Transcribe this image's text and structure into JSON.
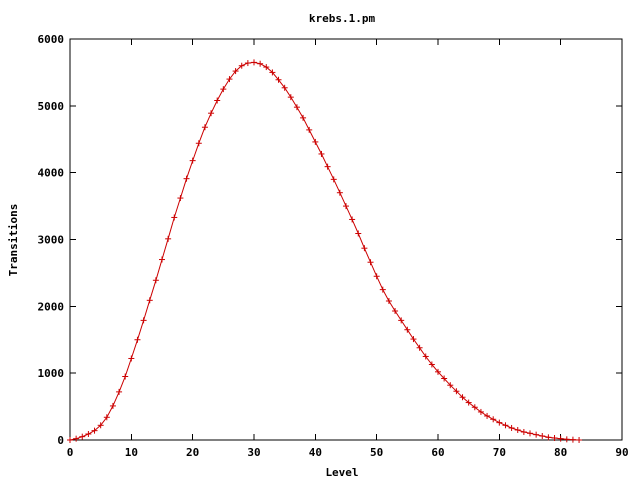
{
  "chart_data": {
    "type": "line",
    "title": "krebs.1.pm",
    "xlabel": "Level",
    "ylabel": "Transitions",
    "xlim": [
      0,
      90
    ],
    "ylim": [
      0,
      6000
    ],
    "xticks": [
      0,
      10,
      20,
      30,
      40,
      50,
      60,
      70,
      80,
      90
    ],
    "yticks": [
      0,
      1000,
      2000,
      3000,
      4000,
      5000,
      6000
    ],
    "grid": false,
    "legend": "none",
    "marker": "plus",
    "colors": {
      "series": "#cc0000",
      "axes": "#000000"
    },
    "series": [
      {
        "x": [
          0,
          1,
          2,
          3,
          4,
          5,
          6,
          7,
          8,
          9,
          10,
          11,
          12,
          13,
          14,
          15,
          16,
          17,
          18,
          19,
          20,
          21,
          22,
          23,
          24,
          25,
          26,
          27,
          28,
          29,
          30,
          31,
          32,
          33,
          34,
          35,
          36,
          37,
          38,
          39,
          40,
          41,
          42,
          43,
          44,
          45,
          46,
          47,
          48,
          49,
          50,
          51,
          52,
          53,
          54,
          55,
          56,
          57,
          58,
          59,
          60,
          61,
          62,
          63,
          64,
          65,
          66,
          67,
          68,
          69,
          70,
          71,
          72,
          73,
          74,
          75,
          76,
          77,
          78,
          79,
          80,
          81,
          82,
          83
        ],
        "y": [
          0,
          20,
          50,
          90,
          140,
          220,
          340,
          510,
          720,
          950,
          1220,
          1500,
          1790,
          2090,
          2390,
          2700,
          3010,
          3330,
          3620,
          3910,
          4180,
          4440,
          4680,
          4890,
          5080,
          5250,
          5400,
          5520,
          5600,
          5640,
          5650,
          5630,
          5580,
          5500,
          5390,
          5270,
          5130,
          4980,
          4820,
          4640,
          4460,
          4280,
          4090,
          3900,
          3700,
          3500,
          3300,
          3090,
          2870,
          2660,
          2450,
          2250,
          2080,
          1930,
          1790,
          1650,
          1510,
          1380,
          1250,
          1130,
          1020,
          920,
          820,
          730,
          640,
          560,
          490,
          420,
          360,
          310,
          260,
          220,
          180,
          150,
          120,
          100,
          80,
          60,
          40,
          30,
          20,
          10,
          5,
          0
        ]
      }
    ]
  }
}
